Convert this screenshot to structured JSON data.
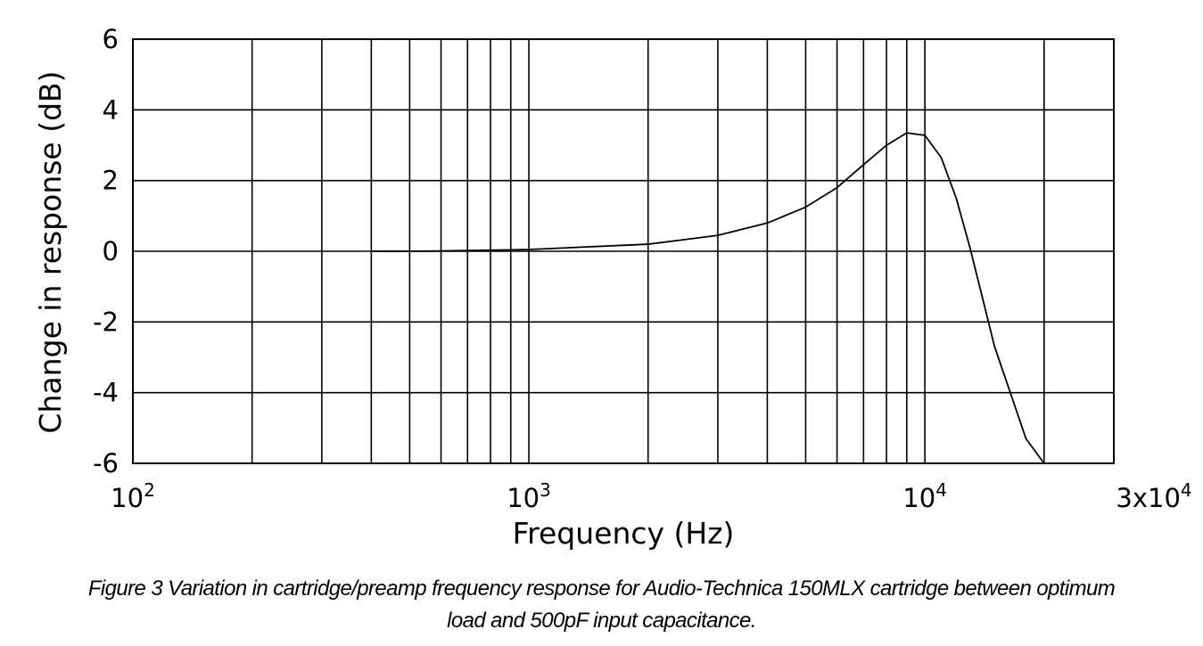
{
  "chart_data": {
    "type": "line",
    "x_scale": "log",
    "xlim": [
      100,
      30000
    ],
    "ylim": [
      -6,
      6
    ],
    "xlabel": "Frequency (Hz)",
    "ylabel": "Change in response (dB)",
    "grid": true,
    "x_ticks": [
      {
        "base": "10",
        "exp": "2"
      },
      {
        "base": "10",
        "exp": "3"
      },
      {
        "base": "10",
        "exp": "4"
      },
      {
        "base": "3x10",
        "exp": "4"
      }
    ],
    "y_ticks": [
      "6",
      "4",
      "2",
      "0",
      "-2",
      "-4",
      "-6"
    ],
    "series": [
      {
        "x": [
          400,
          500,
          600,
          700,
          800,
          900,
          1000,
          2000,
          3000,
          4000,
          5000,
          6000,
          7000,
          8000,
          9000,
          10000,
          11000,
          12000,
          13000,
          15000,
          18000,
          20000
        ],
        "y": [
          0,
          0,
          0.01,
          0.02,
          0.03,
          0.04,
          0.05,
          0.2,
          0.45,
          0.8,
          1.25,
          1.8,
          2.45,
          3.0,
          3.35,
          3.28,
          2.65,
          1.5,
          0.1,
          -2.7,
          -5.3,
          -6.0
        ],
        "color": "#000000"
      }
    ]
  },
  "caption": {
    "line1": "Figure 3 Variation in cartridge/preamp frequency response for Audio-Technica 150MLX cartridge between optimum",
    "line2": "load and 500pF input capacitance."
  }
}
